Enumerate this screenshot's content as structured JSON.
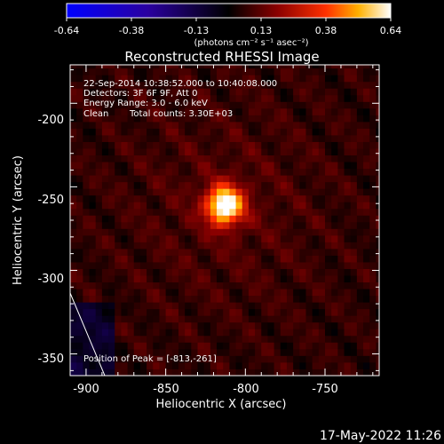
{
  "colorbar": {
    "ticks": [
      "-0.64",
      "-0.38",
      "-0.13",
      "0.13",
      "0.38",
      "0.64"
    ],
    "label": "(photons cm⁻² s⁻¹ asec⁻²)",
    "range": [
      -0.64,
      0.64
    ]
  },
  "title": "Reconstructed RHESSI Image",
  "annotations": {
    "time": "22-Sep-2014 10:38:52.000 to 10:40:08.000",
    "detectors": "Detectors: 3F 6F 9F, Att 0",
    "energy": "Energy Range: 3.0 - 6.0 keV",
    "method": "Clean",
    "counts": "Total counts: 3.30E+03",
    "peak": "Position of Peak = [-813,-261]"
  },
  "footer": {
    "date": "17-May-2022 11:26"
  },
  "chart_data": {
    "type": "heatmap",
    "title": "Reconstructed RHESSI Image",
    "xlabel": "Heliocentric X (arcsec)",
    "ylabel": "Heliocentric Y (arcsec)",
    "xlim": [
      -910,
      -716
    ],
    "ylim": [
      -363,
      -177
    ],
    "xticks": [
      -900,
      -850,
      -800,
      -750
    ],
    "yticks": [
      -200,
      -250,
      -300,
      -350
    ],
    "peak": {
      "x": -813,
      "y": -261,
      "value": 0.64
    },
    "colorscale": [
      "#0000ff",
      "#2a00a0",
      "#000000",
      "#8a0000",
      "#ff3000",
      "#ffb000",
      "#ffffff"
    ]
  }
}
